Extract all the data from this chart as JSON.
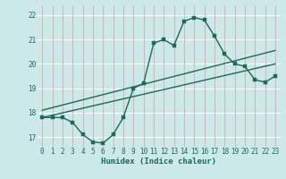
{
  "xlabel": "Humidex (Indice chaleur)",
  "bg_color": "#cce8e8",
  "grid_h_color": "#ffffff",
  "grid_v_color": "#d4b8b8",
  "line_color": "#1a6b5a",
  "xlim": [
    -0.5,
    23.5
  ],
  "ylim": [
    16.6,
    22.4
  ],
  "yticks": [
    17,
    18,
    19,
    20,
    21,
    22
  ],
  "xticks": [
    0,
    1,
    2,
    3,
    4,
    5,
    6,
    7,
    8,
    9,
    10,
    11,
    12,
    13,
    14,
    15,
    16,
    17,
    18,
    19,
    20,
    21,
    22,
    23
  ],
  "line1_x": [
    0,
    1,
    2,
    3,
    4,
    5,
    6,
    7,
    8,
    9,
    10,
    11,
    12,
    13,
    14,
    15,
    16,
    17,
    18,
    19,
    20,
    21,
    22,
    23
  ],
  "line1_y": [
    17.8,
    17.8,
    17.8,
    17.6,
    17.1,
    16.8,
    16.75,
    17.1,
    17.8,
    19.0,
    19.2,
    20.85,
    21.0,
    20.75,
    21.75,
    21.9,
    21.8,
    21.15,
    20.4,
    20.0,
    19.9,
    19.35,
    19.25,
    19.5
  ],
  "line2_x": [
    0,
    23
  ],
  "line2_y": [
    17.8,
    20.0
  ],
  "line3_x": [
    0,
    23
  ],
  "line3_y": [
    18.1,
    20.55
  ]
}
